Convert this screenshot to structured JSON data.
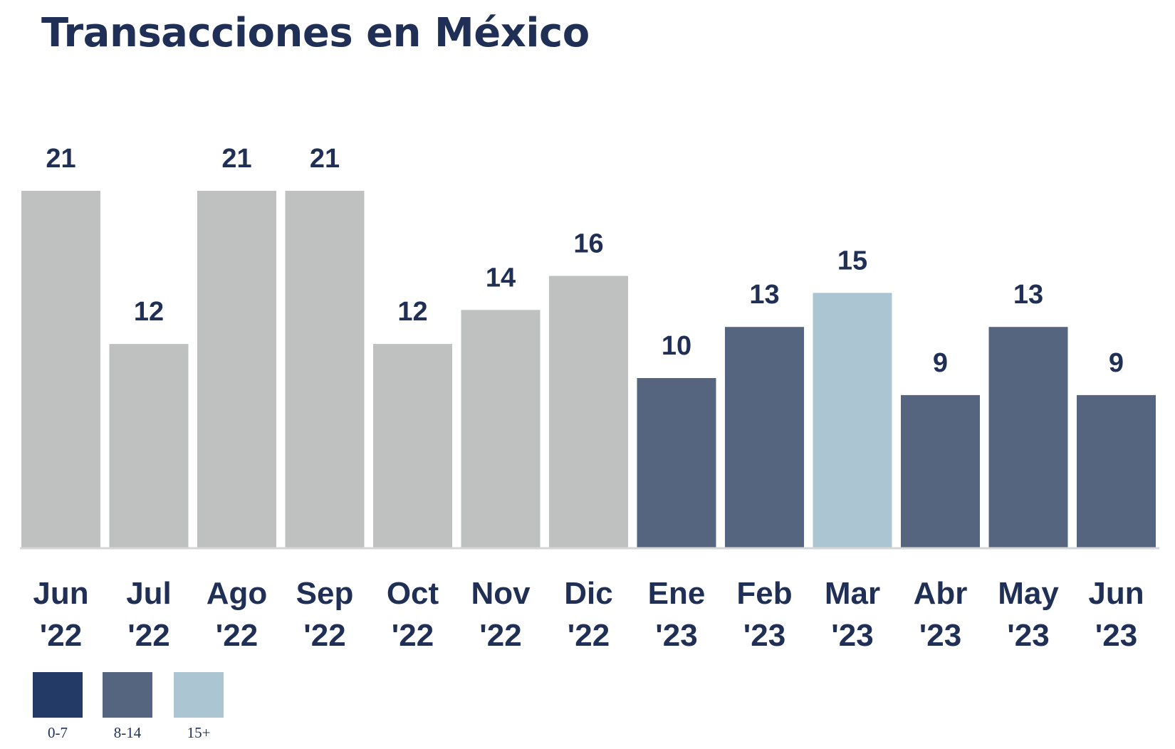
{
  "chart_data": {
    "type": "bar",
    "title": "Transacciones en México",
    "categories": [
      [
        "Jun",
        "'22"
      ],
      [
        "Jul",
        "'22"
      ],
      [
        "Ago",
        "'22"
      ],
      [
        "Sep",
        "'22"
      ],
      [
        "Oct",
        "'22"
      ],
      [
        "Nov",
        "'22"
      ],
      [
        "Dic",
        "'22"
      ],
      [
        "Ene",
        "'23"
      ],
      [
        "Feb",
        "'23"
      ],
      [
        "Mar",
        "'23"
      ],
      [
        "Abr",
        "'23"
      ],
      [
        "May",
        "'23"
      ],
      [
        "Jun",
        "'23"
      ]
    ],
    "values": [
      21,
      12,
      21,
      21,
      12,
      14,
      16,
      10,
      13,
      15,
      9,
      13,
      9
    ],
    "bar_colors": [
      "#bfc0c0",
      "#bfc0c0",
      "#bfc0c0",
      "#bfc0c0",
      "#bfc0c0",
      "#bfc0c0",
      "#bfc0c0",
      "#56657f",
      "#56657f",
      "#abc5d3",
      "#56657f",
      "#56657f",
      "#56657f"
    ],
    "label_color": "#1f2f55",
    "ylim": [
      0,
      21
    ],
    "grid": false,
    "legend": {
      "placement": "bottom-left",
      "items": [
        {
          "label": "0-7",
          "color": "#233966"
        },
        {
          "label": "8-14",
          "color": "#56657f"
        },
        {
          "label": "15+",
          "color": "#abc5d3"
        }
      ]
    }
  }
}
